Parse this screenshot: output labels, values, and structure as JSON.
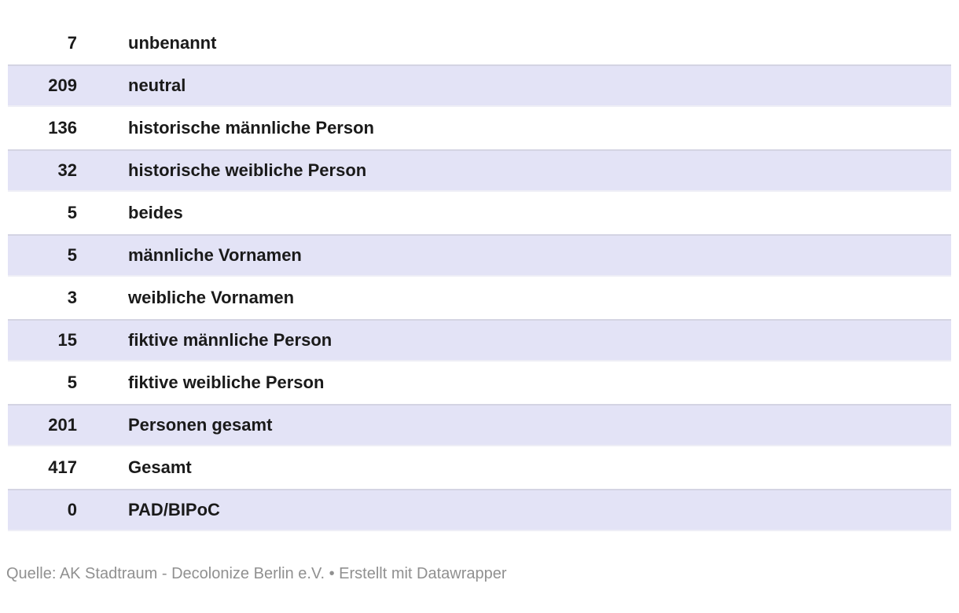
{
  "chart_data": {
    "type": "table",
    "rows": [
      {
        "value": "7",
        "label": "unbenannt"
      },
      {
        "value": "209",
        "label": "neutral"
      },
      {
        "value": "136",
        "label": "historische männliche Person"
      },
      {
        "value": "32",
        "label": "historische weibliche Person"
      },
      {
        "value": "5",
        "label": "beides"
      },
      {
        "value": "5",
        "label": "männliche Vornamen"
      },
      {
        "value": "3",
        "label": "weibliche Vornamen"
      },
      {
        "value": "15",
        "label": "fiktive männliche Person"
      },
      {
        "value": "5",
        "label": "fiktive weibliche Person"
      },
      {
        "value": "201",
        "label": "Personen gesamt"
      },
      {
        "value": "417",
        "label": "Gesamt"
      },
      {
        "value": "0",
        "label": "PAD/BIPoC"
      }
    ],
    "source": "AK Stadtraum - Decolonize Berlin e.V.",
    "credit": "Erstellt mit Datawrapper",
    "layout_hints": {
      "striped": true,
      "stripe_rows": "even (2nd, 4th, ...)",
      "grid": false
    }
  },
  "footer": {
    "text": "Quelle: AK Stadtraum - Decolonize Berlin e.V. • Erstellt mit Datawrapper"
  },
  "colors": {
    "row_alt_bg": "#e3e3f6",
    "row_border_top": "#d4d4e3",
    "row_border_bottom": "#eeeef6",
    "text": "#1a1a1a",
    "footer_text": "#909090"
  }
}
